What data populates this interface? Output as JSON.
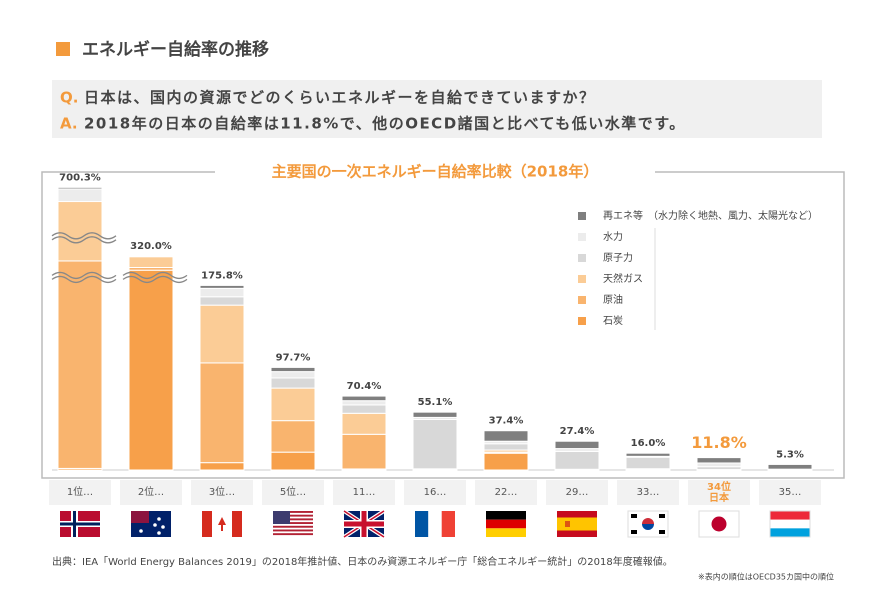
{
  "header": {
    "title": "エネルギー自給率の推移"
  },
  "qa": {
    "q_label": "Q.",
    "q_text": "日本は、国内の資源でどのくらいエネルギーを自給できていますか？",
    "a_label": "A.",
    "a_text": "2018年の日本の自給率は11.8%で、他のOECD諸国と比べても低い水準です。"
  },
  "chart_data": {
    "type": "stacked_bar",
    "title": "主要国の一次エネルギー自給率比較（2018年）",
    "categories": [
      "1位…",
      "2位…",
      "3位…",
      "5位…",
      "11…",
      "16…",
      "22…",
      "29…",
      "33…",
      "34位\n日本",
      "35…"
    ],
    "series": [
      {
        "name": "石炭",
        "color": "#f7a04a",
        "values": [
          1.5,
          240,
          7,
          17,
          1,
          0,
          16,
          0.5,
          0.5,
          0,
          0
        ]
      },
      {
        "name": "原油",
        "color": "#f9b46e",
        "values": [
          290,
          15,
          95,
          30,
          33,
          1,
          1,
          0.2,
          0.5,
          0.1,
          0
        ]
      },
      {
        "name": "天然ガス",
        "color": "#fbcc96",
        "values": [
          330,
          60,
          55,
          31,
          20,
          0.1,
          2,
          0,
          0.2,
          0.3,
          0
        ]
      },
      {
        "name": "原子力",
        "color": "#d8d8d8",
        "values": [
          0,
          0,
          8,
          9.7,
          8,
          47,
          6,
          17,
          11,
          2.8,
          0
        ]
      },
      {
        "name": "水力",
        "color": "#ececec",
        "values": [
          70,
          1.5,
          8,
          6,
          4,
          2,
          2.4,
          2.7,
          0.8,
          3.5,
          0.8
        ]
      },
      {
        "name": "再エネ等",
        "color": "#7f7f7f",
        "values": [
          8.8,
          3.5,
          2.8,
          4,
          4.4,
          5,
          10,
          7,
          3,
          5.1,
          4.5
        ]
      }
    ],
    "totals": [
      700.3,
      320.0,
      175.8,
      97.7,
      70.4,
      55.1,
      37.4,
      27.4,
      16.0,
      11.8,
      5.3
    ],
    "value_labels": [
      "700.3%",
      "320.0%",
      "175.8%",
      "97.7%",
      "70.4%",
      "55.1%",
      "37.4%",
      "27.4%",
      "16.0%",
      "11.8%",
      "5.3%"
    ],
    "value_label_colors": [
      "#444",
      "#444",
      "#444",
      "#444",
      "#444",
      "#444",
      "#444",
      "#444",
      "#444",
      "#f39a3c",
      "#444"
    ],
    "legend_note": "（水力除く地熱、風力、太陽光など）"
  },
  "footer": {
    "source": "出典：IEA「World Energy Balances 2019」の2018年推計値、日本のみ資源エネルギー庁「総合エネルギー統計」の2018年度確報値。",
    "note": "※表内の順位はOECD35カ国中の順位"
  }
}
